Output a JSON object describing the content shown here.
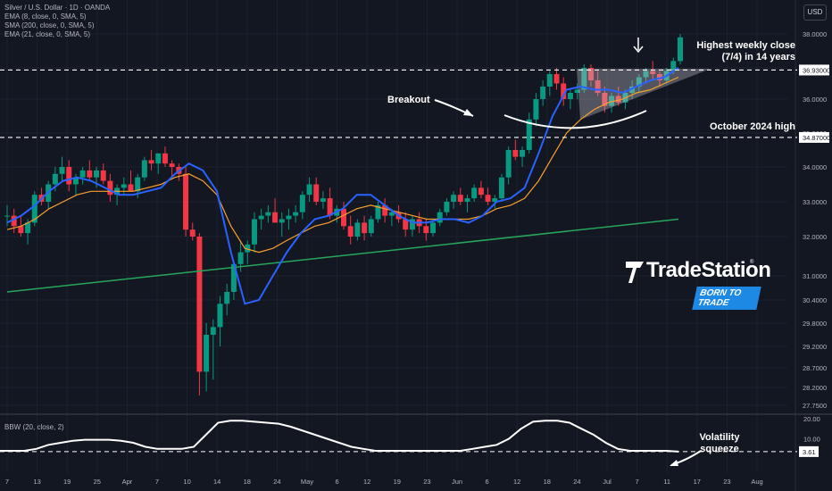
{
  "header": {
    "symbol_line": "Silver / U.S. Dollar · 1D · OANDA",
    "indicators": [
      "EMA (8, close, 0, SMA, 5)",
      "SMA (200, close, 0, SMA, 5)",
      "EMA (21, close, 0, SMA, 5)"
    ],
    "currency_button": "USD"
  },
  "watermark": {
    "brand": "TradeStation",
    "trademark": "®",
    "slogan": "BORN TO TRADE"
  },
  "colors": {
    "background": "#131722",
    "up": "#089981",
    "down": "#f23645",
    "ema8": "#2962ff",
    "ema21": "#f7a02d",
    "sma200": "#26a65b",
    "bbw": "#ffffff",
    "grid": "#1e222d"
  },
  "chart_data": [
    {
      "type": "candlestick",
      "title": "",
      "y_axis": {
        "side": "right",
        "ticks": [
          38.0,
          37.0,
          36.0,
          35.0,
          34.0,
          33.0,
          32.0,
          31.0,
          30.4,
          29.8,
          29.2,
          28.7,
          28.2,
          27.75
        ],
        "tick_labels": [
          "38.0000",
          "37.0000",
          "36.0000",
          "35.0000",
          "34.0000",
          "33.0000",
          "32.0000",
          "31.0000",
          "30.4000",
          "29.8000",
          "29.2000",
          "28.7000",
          "28.2000",
          "27.7500"
        ]
      },
      "x_axis": {
        "tick_labels": [
          "7",
          "13",
          "19",
          "25",
          "Apr",
          "7",
          "10",
          "14",
          "18",
          "24",
          "May",
          "6",
          "12",
          "19",
          "23",
          "Jun",
          "6",
          "12",
          "18",
          "24",
          "Jul",
          "7",
          "11",
          "17",
          "23",
          "Aug"
        ]
      },
      "price_labels": [
        {
          "value": "36.93000"
        },
        {
          "value": "34.87000"
        }
      ],
      "reference_lines": [
        {
          "name": "Highest weekly close",
          "y": 36.93
        },
        {
          "name": "October 2024 high",
          "y": 34.87
        }
      ],
      "series_info": [
        "EMA 8",
        "EMA 21",
        "SMA 200"
      ],
      "annotations": [
        {
          "text": "Highest weekly close\n(7/4) in 14 years"
        },
        {
          "text": "October 2024 high"
        },
        {
          "text": "Breakout"
        }
      ],
      "candles_ohlc": [
        [
          32.6,
          32.9,
          32.3,
          32.6
        ],
        [
          32.6,
          32.8,
          32.1,
          32.3
        ],
        [
          32.3,
          32.6,
          32.0,
          32.1
        ],
        [
          32.1,
          32.5,
          31.8,
          32.4
        ],
        [
          32.4,
          33.3,
          32.3,
          33.2
        ],
        [
          33.2,
          33.4,
          32.9,
          33.0
        ],
        [
          33.0,
          33.6,
          32.8,
          33.5
        ],
        [
          33.5,
          34.0,
          33.3,
          33.8
        ],
        [
          33.8,
          34.3,
          33.6,
          34.0
        ],
        [
          34.0,
          34.2,
          33.3,
          33.5
        ],
        [
          33.5,
          33.8,
          33.2,
          33.7
        ],
        [
          33.7,
          34.0,
          33.5,
          33.9
        ],
        [
          33.9,
          34.2,
          33.6,
          33.7
        ],
        [
          33.7,
          34.0,
          33.4,
          33.9
        ],
        [
          33.9,
          34.1,
          33.5,
          33.6
        ],
        [
          33.6,
          33.8,
          33.0,
          33.2
        ],
        [
          33.2,
          33.5,
          32.9,
          33.4
        ],
        [
          33.4,
          33.7,
          33.2,
          33.5
        ],
        [
          33.5,
          33.9,
          33.3,
          33.3
        ],
        [
          33.3,
          33.8,
          33.1,
          33.7
        ],
        [
          33.7,
          34.3,
          33.6,
          34.2
        ],
        [
          34.2,
          34.5,
          33.9,
          34.1
        ],
        [
          34.1,
          34.4,
          33.8,
          34.4
        ],
        [
          34.4,
          34.6,
          34.0,
          34.1
        ],
        [
          34.1,
          34.2,
          33.7,
          34.0
        ],
        [
          34.0,
          34.1,
          33.6,
          33.8
        ],
        [
          33.8,
          34.0,
          32.0,
          32.2
        ],
        [
          32.2,
          32.4,
          31.9,
          32.0
        ],
        [
          32.0,
          32.1,
          28.0,
          28.6
        ],
        [
          28.6,
          29.8,
          28.1,
          29.5
        ],
        [
          29.5,
          29.9,
          28.4,
          29.7
        ],
        [
          29.7,
          30.5,
          29.2,
          30.3
        ],
        [
          30.3,
          30.8,
          30.0,
          30.6
        ],
        [
          30.6,
          31.4,
          30.4,
          31.3
        ],
        [
          31.3,
          31.9,
          31.1,
          31.6
        ],
        [
          31.6,
          31.9,
          31.3,
          31.8
        ],
        [
          31.8,
          32.7,
          31.6,
          32.5
        ],
        [
          32.5,
          32.8,
          32.2,
          32.6
        ],
        [
          32.6,
          32.9,
          32.4,
          32.7
        ],
        [
          32.7,
          33.1,
          32.5,
          32.4
        ],
        [
          32.4,
          32.7,
          32.0,
          32.5
        ],
        [
          32.5,
          32.8,
          32.2,
          32.6
        ],
        [
          32.6,
          32.9,
          32.4,
          32.7
        ],
        [
          32.7,
          33.3,
          32.5,
          33.2
        ],
        [
          33.2,
          33.7,
          33.0,
          33.5
        ],
        [
          33.5,
          33.7,
          32.9,
          33.0
        ],
        [
          33.0,
          33.3,
          32.8,
          33.1
        ],
        [
          33.1,
          33.4,
          32.5,
          32.6
        ],
        [
          32.6,
          32.9,
          32.4,
          32.8
        ],
        [
          32.8,
          33.0,
          32.2,
          32.3
        ],
        [
          32.3,
          32.6,
          31.8,
          32.0
        ],
        [
          32.0,
          32.5,
          31.9,
          32.4
        ],
        [
          32.4,
          32.6,
          31.9,
          32.1
        ],
        [
          32.1,
          32.6,
          32.0,
          32.5
        ],
        [
          32.5,
          33.0,
          32.4,
          32.9
        ],
        [
          32.9,
          33.1,
          32.4,
          32.6
        ],
        [
          32.6,
          32.8,
          32.3,
          32.7
        ],
        [
          32.7,
          32.9,
          32.4,
          32.5
        ],
        [
          32.5,
          32.7,
          32.0,
          32.2
        ],
        [
          32.2,
          32.6,
          32.0,
          32.5
        ],
        [
          32.5,
          32.7,
          32.1,
          32.3
        ],
        [
          32.3,
          32.5,
          31.9,
          32.1
        ],
        [
          32.1,
          32.5,
          32.0,
          32.4
        ],
        [
          32.4,
          32.8,
          32.3,
          32.7
        ],
        [
          32.7,
          33.1,
          32.6,
          33.0
        ],
        [
          33.0,
          33.3,
          32.8,
          33.2
        ],
        [
          33.2,
          33.4,
          32.9,
          33.0
        ],
        [
          33.0,
          33.2,
          32.7,
          33.1
        ],
        [
          33.1,
          33.5,
          33.0,
          33.4
        ],
        [
          33.4,
          33.6,
          33.1,
          33.2
        ],
        [
          33.2,
          33.4,
          32.9,
          33.0
        ],
        [
          33.0,
          33.2,
          32.8,
          33.1
        ],
        [
          33.1,
          33.8,
          33.0,
          33.7
        ],
        [
          33.7,
          34.6,
          33.5,
          34.5
        ],
        [
          34.5,
          34.8,
          34.2,
          34.3
        ],
        [
          34.3,
          34.6,
          34.0,
          34.5
        ],
        [
          34.5,
          35.6,
          34.4,
          35.4
        ],
        [
          35.4,
          36.2,
          35.2,
          36.0
        ],
        [
          36.0,
          36.6,
          35.8,
          36.4
        ],
        [
          36.4,
          36.9,
          36.1,
          36.8
        ],
        [
          36.8,
          37.0,
          36.3,
          36.5
        ],
        [
          36.5,
          36.7,
          35.8,
          36.0
        ],
        [
          36.0,
          36.3,
          35.7,
          36.2
        ],
        [
          36.2,
          36.5,
          36.0,
          36.3
        ],
        [
          36.3,
          37.1,
          36.2,
          37.0
        ],
        [
          37.0,
          37.1,
          36.4,
          36.6
        ],
        [
          36.6,
          36.9,
          36.1,
          36.2
        ],
        [
          36.2,
          36.4,
          35.6,
          35.8
        ],
        [
          35.8,
          36.2,
          35.6,
          36.1
        ],
        [
          36.1,
          36.4,
          35.8,
          35.9
        ],
        [
          35.9,
          36.3,
          35.7,
          36.2
        ],
        [
          36.2,
          36.6,
          36.0,
          36.4
        ],
        [
          36.4,
          36.8,
          36.2,
          36.7
        ],
        [
          36.7,
          37.0,
          36.5,
          36.9
        ],
        [
          36.9,
          37.2,
          36.6,
          36.8
        ],
        [
          36.8,
          36.9,
          36.4,
          36.6
        ],
        [
          36.6,
          37.0,
          36.5,
          36.9
        ],
        [
          36.9,
          37.3,
          36.8,
          37.2
        ],
        [
          37.2,
          38.0,
          37.1,
          37.9
        ]
      ],
      "ema8_approx": [
        32.4,
        32.6,
        32.9,
        33.3,
        33.6,
        33.7,
        33.6,
        33.4,
        33.2,
        33.2,
        33.3,
        33.4,
        33.8,
        34.1,
        33.9,
        33.3,
        31.6,
        30.3,
        30.4,
        31.0,
        31.6,
        32.1,
        32.5,
        32.6,
        32.8,
        33.2,
        33.2,
        32.9,
        32.6,
        32.4,
        32.4,
        32.5,
        32.5,
        32.4,
        32.6,
        33.0,
        33.1,
        33.4,
        34.4,
        35.5,
        36.3,
        36.4,
        36.3,
        36.3,
        36.2,
        36.4,
        36.6,
        36.7,
        37.0
      ],
      "ema21_approx": [
        32.2,
        32.3,
        32.5,
        32.8,
        33.0,
        33.2,
        33.3,
        33.3,
        33.3,
        33.3,
        33.4,
        33.5,
        33.7,
        33.8,
        33.6,
        33.2,
        32.3,
        31.7,
        31.6,
        31.7,
        31.9,
        32.1,
        32.3,
        32.4,
        32.6,
        32.8,
        32.9,
        32.8,
        32.7,
        32.6,
        32.5,
        32.5,
        32.5,
        32.5,
        32.6,
        32.8,
        32.9,
        33.1,
        33.6,
        34.3,
        35.0,
        35.4,
        35.7,
        35.9,
        36.0,
        36.2,
        36.3,
        36.5,
        36.7
      ],
      "sma200_approx": [
        30.6,
        32.5
      ]
    },
    {
      "type": "line",
      "title": "BBW (20, close, 2)",
      "y_axis": {
        "tick_labels": [
          "20.00",
          "10.00"
        ]
      },
      "price_label": "3.61",
      "annotations": [
        {
          "text": "Volatility\nsqueeze"
        }
      ],
      "values": [
        4,
        4,
        4,
        5,
        7,
        8,
        9,
        9.5,
        9.5,
        9.5,
        9,
        8,
        6,
        5,
        5,
        5,
        6,
        12,
        18,
        19,
        19,
        18.5,
        18,
        17.5,
        16,
        14,
        12,
        10,
        8,
        6,
        5,
        4,
        4,
        4,
        4,
        4,
        4,
        4,
        4,
        5,
        6,
        7,
        10,
        15,
        18.5,
        19,
        19,
        18,
        15,
        12,
        8,
        5,
        4,
        4,
        4,
        4,
        3.61
      ]
    }
  ]
}
